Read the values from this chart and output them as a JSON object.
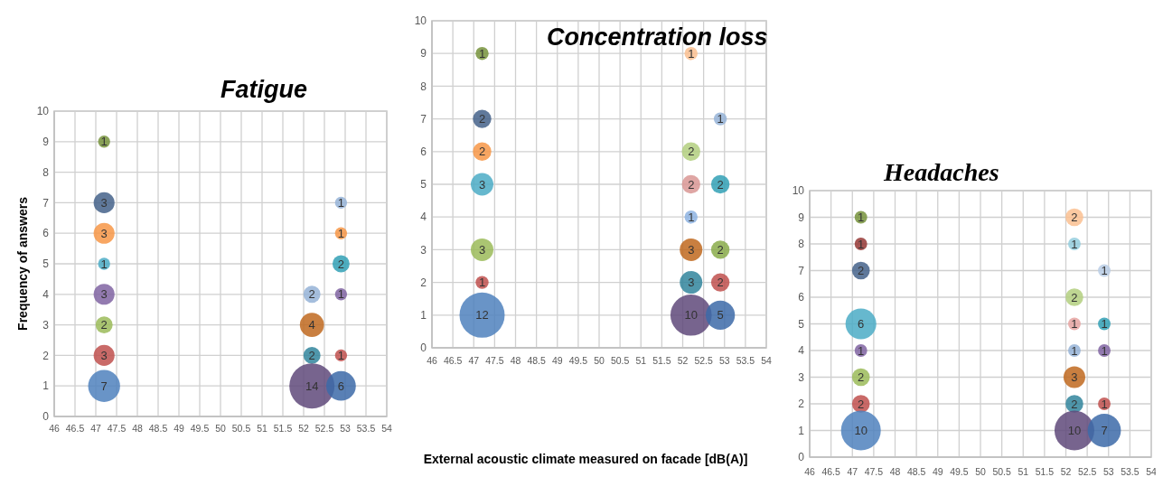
{
  "chart_data": [
    {
      "type": "bubble",
      "title": "Fatigue",
      "xlabel": "External acoustic climate measured on facade [dB(A)]",
      "ylabel": "Frequency of answers",
      "xlim": [
        46,
        54
      ],
      "xticks": [
        46,
        46.5,
        47,
        47.5,
        48,
        48.5,
        49,
        49.5,
        50,
        50.5,
        51,
        51.5,
        52,
        52.5,
        53,
        53.5,
        54
      ],
      "ylim": [
        0,
        10
      ],
      "yticks": [
        0,
        1,
        2,
        3,
        4,
        5,
        6,
        7,
        8,
        9,
        10
      ],
      "grid": true,
      "series": [
        {
          "x": [
            47.2,
            47.2,
            47.2,
            47.2,
            47.2,
            47.2,
            47.2,
            47.2,
            52.2,
            52.2,
            52.2,
            52.2,
            52.9,
            52.9,
            52.9,
            52.9,
            52.9,
            52.9
          ],
          "values": [
            9,
            7,
            6,
            5,
            4,
            3,
            2,
            1,
            4,
            3,
            2,
            1,
            7,
            6,
            5,
            4,
            2,
            1
          ],
          "sizes": [
            1,
            3,
            3,
            1,
            3,
            2,
            3,
            7,
            2,
            4,
            2,
            14,
            1,
            1,
            2,
            1,
            1,
            6
          ],
          "value_labels": [
            "1",
            "3",
            "3",
            "1",
            "3",
            "2",
            "3",
            "7",
            "2",
            "4",
            "2",
            "14",
            "1",
            "1",
            "2",
            "1",
            "1",
            "6"
          ],
          "colors": [
            "#77933c",
            "#44618a",
            "#f79646",
            "#4bacc6",
            "#8064a2",
            "#9bbb59",
            "#c0504d",
            "#4f81bd",
            "#95b3d7",
            "#c0681e",
            "#31859c",
            "#5f497a",
            "#95b3d7",
            "#f79646",
            "#31a0b5",
            "#8064a2",
            "#c0504d",
            "#3c6aa8"
          ]
        }
      ]
    },
    {
      "type": "bubble",
      "title": "Concentration loss",
      "xlim": [
        46,
        54
      ],
      "xticks": [
        46,
        46.5,
        47,
        47.5,
        48,
        48.5,
        49,
        49.5,
        50,
        50.5,
        51,
        51.5,
        52,
        52.5,
        53,
        53.5,
        54
      ],
      "ylim": [
        0,
        10
      ],
      "yticks": [
        0,
        1,
        2,
        3,
        4,
        5,
        6,
        7,
        8,
        9,
        10
      ],
      "grid": true,
      "series": [
        {
          "x": [
            47.2,
            47.2,
            47.2,
            47.2,
            47.2,
            47.2,
            47.2,
            52.2,
            52.2,
            52.2,
            52.2,
            52.2,
            52.2,
            52.2,
            52.9,
            52.9,
            52.9,
            52.9,
            52.9
          ],
          "values": [
            9,
            7,
            6,
            5,
            3,
            2,
            1,
            9,
            6,
            5,
            4,
            3,
            2,
            1,
            7,
            5,
            3,
            2,
            1
          ],
          "sizes": [
            1,
            2,
            2,
            3,
            3,
            1,
            12,
            1,
            2,
            2,
            1,
            3,
            3,
            10,
            1,
            2,
            2,
            2,
            5
          ],
          "value_labels": [
            "1",
            "2",
            "2",
            "3",
            "3",
            "1",
            "12",
            "1",
            "2",
            "2",
            "1",
            "3",
            "3",
            "10",
            "1",
            "2",
            "2",
            "2",
            "5"
          ],
          "colors": [
            "#77933c",
            "#44618a",
            "#f79646",
            "#4bacc6",
            "#9bbb59",
            "#c0504d",
            "#4f81bd",
            "#fac090",
            "#b3cf7f",
            "#d99694",
            "#8db3e2",
            "#c0681e",
            "#31859c",
            "#5f497a",
            "#95b3d7",
            "#31a0b5",
            "#8aab4a",
            "#c0504d",
            "#3c6aa8"
          ]
        }
      ]
    },
    {
      "type": "bubble",
      "title": "Headaches",
      "xlim": [
        46,
        54
      ],
      "xticks": [
        46,
        46.5,
        47,
        47.5,
        48,
        48.5,
        49,
        49.5,
        50,
        50.5,
        51,
        51.5,
        52,
        52.5,
        53,
        53.5,
        54
      ],
      "ylim": [
        0,
        10
      ],
      "yticks": [
        0,
        1,
        2,
        3,
        4,
        5,
        6,
        7,
        8,
        9,
        10
      ],
      "grid": true,
      "series": [
        {
          "x": [
            47.2,
            47.2,
            47.2,
            47.2,
            47.2,
            47.2,
            47.2,
            47.2,
            52.2,
            52.2,
            52.2,
            52.2,
            52.2,
            52.2,
            52.2,
            52.2,
            52.9,
            52.9,
            52.9,
            52.9,
            52.9
          ],
          "values": [
            9,
            8,
            7,
            5,
            4,
            3,
            2,
            1,
            9,
            8,
            6,
            5,
            4,
            3,
            2,
            1,
            7,
            5,
            4,
            2,
            1
          ],
          "sizes": [
            1,
            1,
            2,
            6,
            1,
            2,
            2,
            10,
            2,
            1,
            2,
            1,
            1,
            3,
            2,
            10,
            1,
            1,
            1,
            1,
            7
          ],
          "value_labels": [
            "1",
            "1",
            "2",
            "6",
            "1",
            "2",
            "2",
            "10",
            "2",
            "1",
            "2",
            "1",
            "1",
            "3",
            "2",
            "10",
            "1",
            "1",
            "1",
            "1",
            "7"
          ],
          "colors": [
            "#77933c",
            "#953735",
            "#44618a",
            "#4bacc6",
            "#8064a2",
            "#9bbb59",
            "#c0504d",
            "#4f81bd",
            "#fac090",
            "#93cddd",
            "#b3cf7f",
            "#e6a3a1",
            "#95b3d7",
            "#c0681e",
            "#31859c",
            "#5f497a",
            "#b9cde5",
            "#31a0b5",
            "#8064a2",
            "#c0504d",
            "#3c6aa8"
          ]
        }
      ]
    }
  ]
}
